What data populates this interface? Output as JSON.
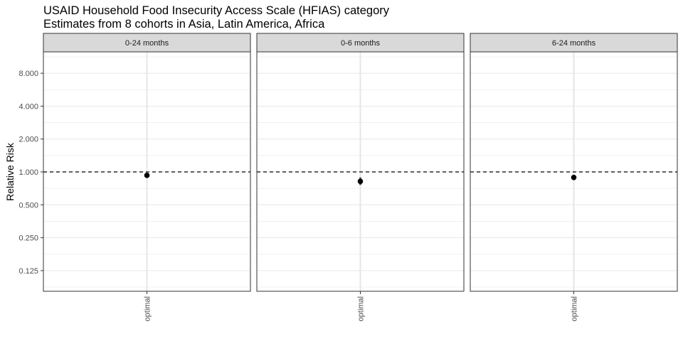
{
  "chart_data": {
    "type": "scatter",
    "title": "USAID Household Food Insecurity Access Scale (HFIAS) category",
    "subtitle": "Estimates from 8 cohorts in Asia, Latin America, Africa",
    "ylabel": "Relative Risk",
    "xlabel": "",
    "y_scale": "log2",
    "ylim": [
      0.1,
      10.5
    ],
    "y_ticks": [
      "8.000",
      "4.000",
      "2.000",
      "1.000",
      "0.500",
      "0.250",
      "0.125"
    ],
    "y_tick_values": [
      8,
      4,
      2,
      1,
      0.5,
      0.25,
      0.125
    ],
    "reference_line": 1,
    "grid": true,
    "categories": [
      "optimal"
    ],
    "panels": [
      {
        "label": "0-24 months",
        "points": [
          {
            "x": "optimal",
            "y": 0.93,
            "ci_lower": 0.91,
            "ci_upper": 0.95
          }
        ]
      },
      {
        "label": "0-6 months",
        "points": [
          {
            "x": "optimal",
            "y": 0.82,
            "ci_lower": 0.76,
            "ci_upper": 0.89
          }
        ]
      },
      {
        "label": "6-24 months",
        "points": [
          {
            "x": "optimal",
            "y": 0.89,
            "ci_lower": 0.85,
            "ci_upper": 0.94
          }
        ]
      }
    ]
  }
}
